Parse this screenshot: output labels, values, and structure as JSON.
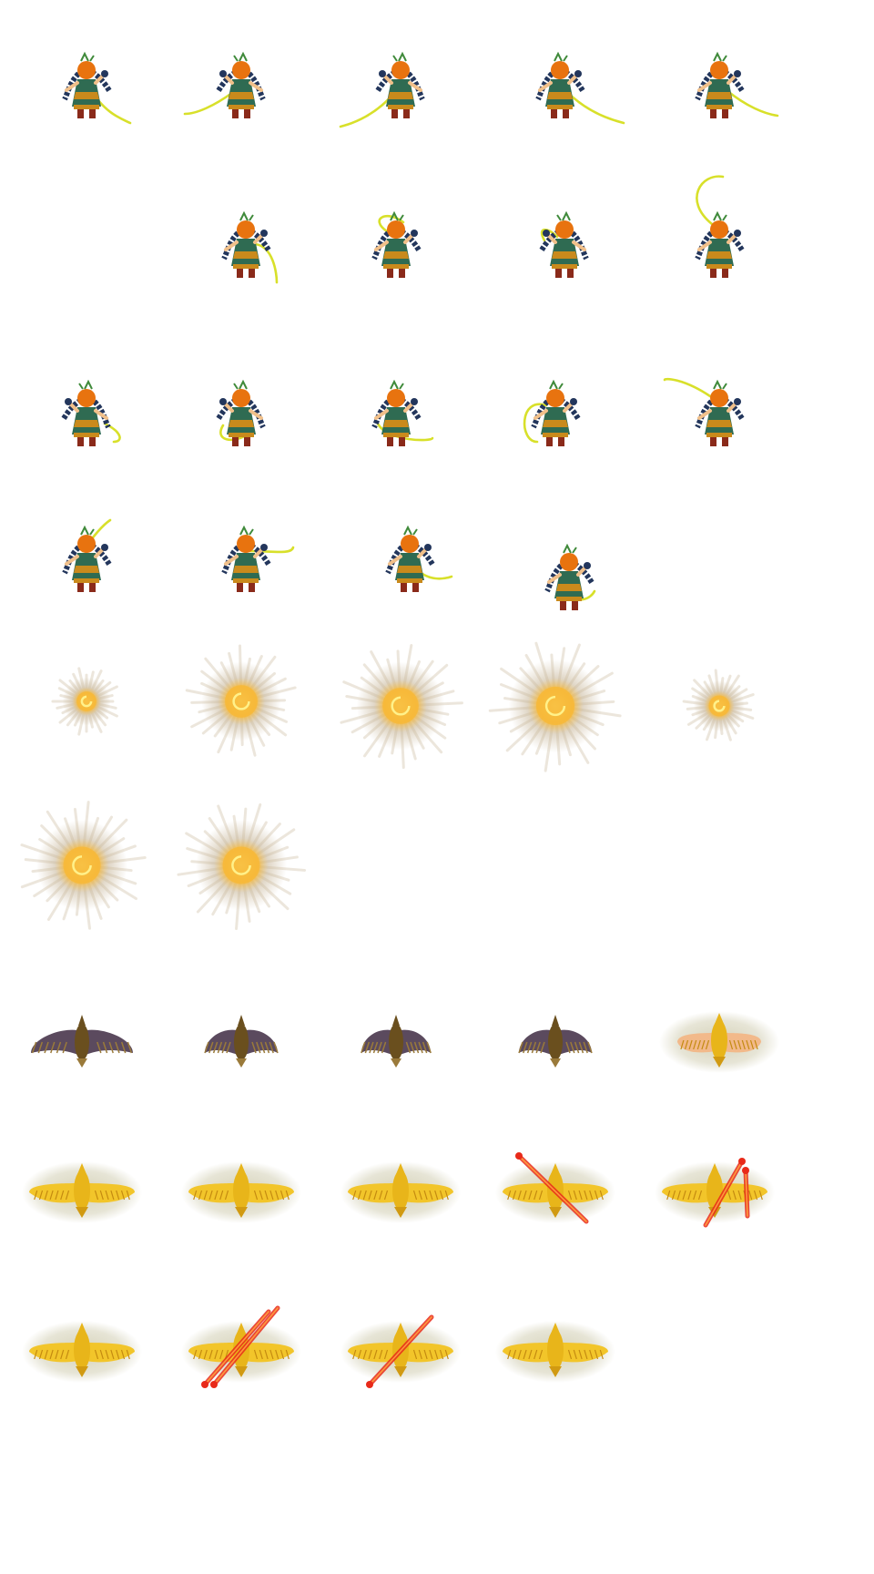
{
  "sheet": {
    "background": "#ffffff",
    "animations": [
      {
        "name": "whip-attack",
        "icon": "whip-girl-icon",
        "frame_count": 19,
        "colors": {
          "hair": "#e8730f",
          "braid": "#23365c",
          "dress": "#2f6b52",
          "trim": "#c98a1c",
          "skin": "#f1c08a",
          "whip": "#d8e02a"
        }
      },
      {
        "name": "light-burst",
        "icon": "burst-icon",
        "frame_count": 7,
        "colors": {
          "glow": "#f7b938",
          "core": "#fff18a",
          "haze": "#c8b79a"
        }
      },
      {
        "name": "eagle-dark",
        "icon": "eagle-icon",
        "frame_count": 4,
        "colors": {
          "body": "#6a4f1e",
          "wing": "#5b4a5e",
          "feather": "#9a7a3a"
        }
      },
      {
        "name": "eagle-golden",
        "icon": "golden-eagle-icon",
        "frame_count": 10,
        "colors": {
          "body": "#e8b51a",
          "wing": "#f2c52a",
          "halo": "#b9b48a",
          "fire": "#e82a1a"
        }
      }
    ]
  }
}
